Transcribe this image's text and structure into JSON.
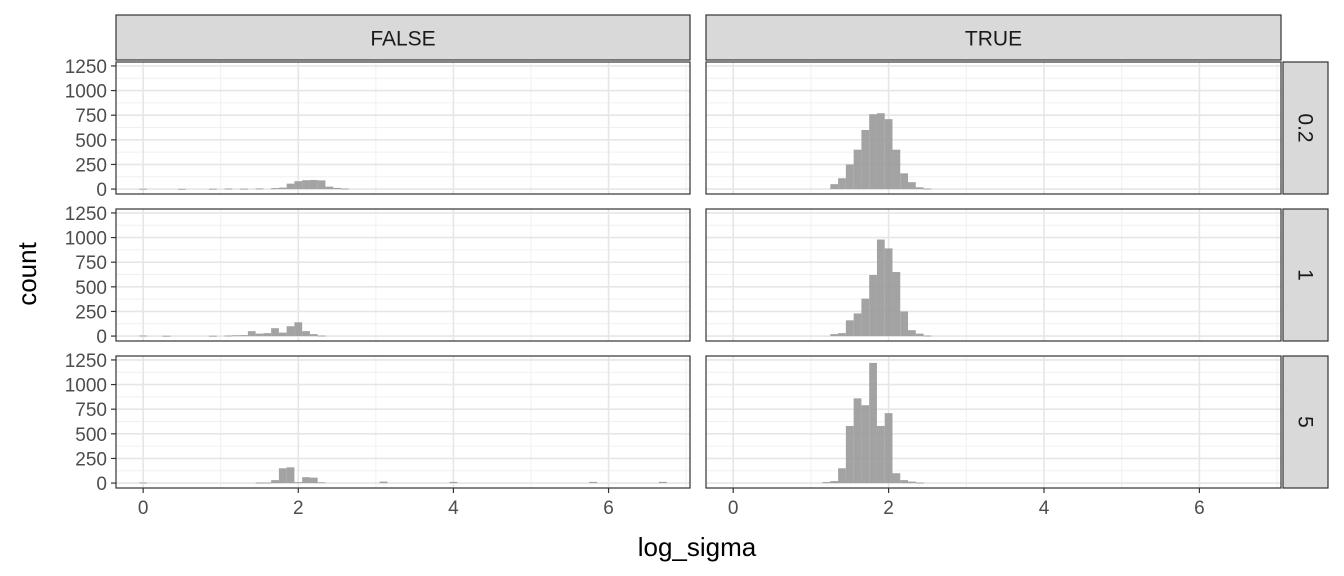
{
  "chart_data": {
    "type": "histogram",
    "facets": {
      "columns": [
        "FALSE",
        "TRUE"
      ],
      "rows": [
        "0.2",
        "1",
        "5"
      ]
    },
    "xlabel": "log_sigma",
    "ylabel": "count",
    "xlim": [
      -0.35,
      7.05
    ],
    "ylim": [
      -50,
      1290
    ],
    "xticks": [
      0,
      2,
      4,
      6
    ],
    "yticks": [
      0,
      250,
      500,
      750,
      1000,
      1250
    ],
    "bin_width": 0.1,
    "bar_color": "#999999",
    "panels": [
      {
        "col": "FALSE",
        "row": "0.2",
        "bins": [
          {
            "x": 0.0,
            "count": 3
          },
          {
            "x": 0.5,
            "count": 2
          },
          {
            "x": 0.9,
            "count": 3
          },
          {
            "x": 1.1,
            "count": 5
          },
          {
            "x": 1.3,
            "count": 4
          },
          {
            "x": 1.5,
            "count": 6
          },
          {
            "x": 1.7,
            "count": 10
          },
          {
            "x": 1.8,
            "count": 15
          },
          {
            "x": 1.9,
            "count": 55
          },
          {
            "x": 2.0,
            "count": 80
          },
          {
            "x": 2.1,
            "count": 90
          },
          {
            "x": 2.2,
            "count": 92
          },
          {
            "x": 2.3,
            "count": 88
          },
          {
            "x": 2.4,
            "count": 25
          },
          {
            "x": 2.5,
            "count": 12
          },
          {
            "x": 2.6,
            "count": 5
          }
        ]
      },
      {
        "col": "TRUE",
        "row": "0.2",
        "bins": [
          {
            "x": 1.3,
            "count": 50
          },
          {
            "x": 1.4,
            "count": 110
          },
          {
            "x": 1.5,
            "count": 250
          },
          {
            "x": 1.6,
            "count": 400
          },
          {
            "x": 1.7,
            "count": 600
          },
          {
            "x": 1.8,
            "count": 760
          },
          {
            "x": 1.9,
            "count": 770
          },
          {
            "x": 2.0,
            "count": 710
          },
          {
            "x": 2.1,
            "count": 400
          },
          {
            "x": 2.2,
            "count": 160
          },
          {
            "x": 2.3,
            "count": 70
          },
          {
            "x": 2.4,
            "count": 18
          },
          {
            "x": 2.5,
            "count": 5
          }
        ]
      },
      {
        "col": "FALSE",
        "row": "1",
        "bins": [
          {
            "x": 0.0,
            "count": 5
          },
          {
            "x": 0.3,
            "count": 3
          },
          {
            "x": 0.9,
            "count": 3
          },
          {
            "x": 1.1,
            "count": 5
          },
          {
            "x": 1.2,
            "count": 8
          },
          {
            "x": 1.3,
            "count": 10
          },
          {
            "x": 1.4,
            "count": 50
          },
          {
            "x": 1.5,
            "count": 25
          },
          {
            "x": 1.6,
            "count": 30
          },
          {
            "x": 1.7,
            "count": 80
          },
          {
            "x": 1.8,
            "count": 35
          },
          {
            "x": 1.9,
            "count": 100
          },
          {
            "x": 2.0,
            "count": 140
          },
          {
            "x": 2.1,
            "count": 50
          },
          {
            "x": 2.2,
            "count": 20
          },
          {
            "x": 2.3,
            "count": 5
          }
        ]
      },
      {
        "col": "TRUE",
        "row": "1",
        "bins": [
          {
            "x": 1.3,
            "count": 20
          },
          {
            "x": 1.4,
            "count": 30
          },
          {
            "x": 1.5,
            "count": 160
          },
          {
            "x": 1.6,
            "count": 230
          },
          {
            "x": 1.7,
            "count": 380
          },
          {
            "x": 1.8,
            "count": 620
          },
          {
            "x": 1.9,
            "count": 980
          },
          {
            "x": 2.0,
            "count": 890
          },
          {
            "x": 2.1,
            "count": 650
          },
          {
            "x": 2.2,
            "count": 250
          },
          {
            "x": 2.3,
            "count": 60
          },
          {
            "x": 2.4,
            "count": 25
          },
          {
            "x": 2.5,
            "count": 5
          }
        ]
      },
      {
        "col": "FALSE",
        "row": "5",
        "bins": [
          {
            "x": 0.0,
            "count": 5
          },
          {
            "x": 1.5,
            "count": 5
          },
          {
            "x": 1.6,
            "count": 5
          },
          {
            "x": 1.7,
            "count": 30
          },
          {
            "x": 1.8,
            "count": 150
          },
          {
            "x": 1.9,
            "count": 160
          },
          {
            "x": 2.0,
            "count": 10
          },
          {
            "x": 2.1,
            "count": 60
          },
          {
            "x": 2.2,
            "count": 55
          },
          {
            "x": 2.3,
            "count": 8
          },
          {
            "x": 3.1,
            "count": 15
          },
          {
            "x": 4.0,
            "count": 12
          },
          {
            "x": 5.8,
            "count": 12
          },
          {
            "x": 6.7,
            "count": 12
          }
        ]
      },
      {
        "col": "TRUE",
        "row": "5",
        "bins": [
          {
            "x": 1.2,
            "count": 10
          },
          {
            "x": 1.3,
            "count": 20
          },
          {
            "x": 1.4,
            "count": 150
          },
          {
            "x": 1.5,
            "count": 580
          },
          {
            "x": 1.6,
            "count": 860
          },
          {
            "x": 1.7,
            "count": 790
          },
          {
            "x": 1.8,
            "count": 1220
          },
          {
            "x": 1.9,
            "count": 580
          },
          {
            "x": 2.0,
            "count": 710
          },
          {
            "x": 2.1,
            "count": 100
          },
          {
            "x": 2.2,
            "count": 30
          },
          {
            "x": 2.3,
            "count": 15
          },
          {
            "x": 2.4,
            "count": 5
          }
        ]
      }
    ]
  }
}
